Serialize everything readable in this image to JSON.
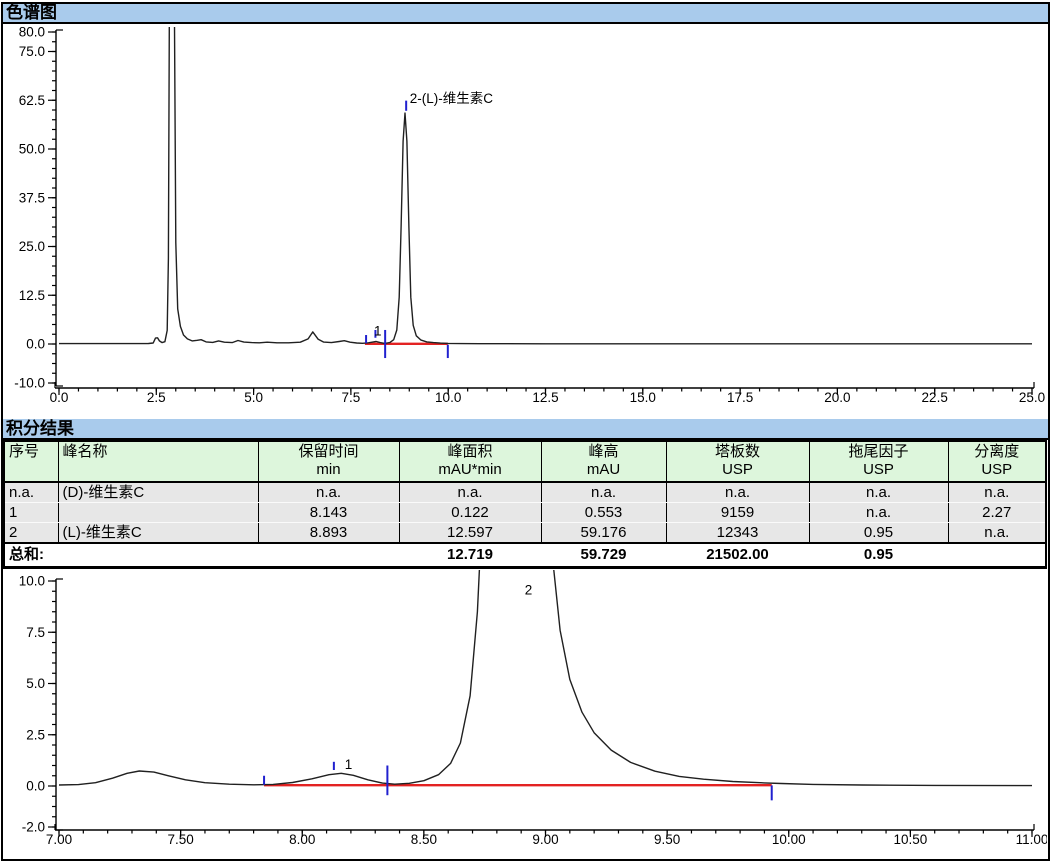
{
  "sections": {
    "chromatogram_title": "色谱图",
    "integration_title": "积分结果"
  },
  "colors": {
    "band_bg": "#a9cbec",
    "header_bg": "#ddf6dc",
    "row_bg": "#e7e7e7",
    "trace": "#202020",
    "baseline_red": "#e32222",
    "marker_blue": "#2020cf",
    "border": "#000000"
  },
  "table": {
    "columns": [
      {
        "label": "序号",
        "unit": "",
        "align": "left"
      },
      {
        "label": "峰名称",
        "unit": "",
        "align": "left"
      },
      {
        "label": "保留时间",
        "unit": "min",
        "align": "center"
      },
      {
        "label": "峰面积",
        "unit": "mAU*min",
        "align": "center"
      },
      {
        "label": "峰高",
        "unit": "mAU",
        "align": "center"
      },
      {
        "label": "塔板数",
        "unit": "USP",
        "align": "center"
      },
      {
        "label": "拖尾因子",
        "unit": "USP",
        "align": "center"
      },
      {
        "label": "分离度",
        "unit": "USP",
        "align": "center"
      }
    ],
    "rows": [
      [
        "n.a.",
        "(D)-维生素C",
        "n.a.",
        "n.a.",
        "n.a.",
        "n.a.",
        "n.a.",
        "n.a."
      ],
      [
        "1",
        "",
        "8.143",
        "0.122",
        "0.553",
        "9159",
        "n.a.",
        "2.27"
      ],
      [
        "2",
        "(L)-维生素C",
        "8.893",
        "12.597",
        "59.176",
        "12343",
        "0.95",
        "n.a."
      ]
    ],
    "total_label": "总和:",
    "total_values": [
      "",
      "12.719",
      "59.729",
      "21502.00",
      "0.95",
      ""
    ]
  },
  "chart_data": [
    {
      "type": "line",
      "name": "chromatogram-full",
      "x_range": [
        0,
        25
      ],
      "y_range": [
        -10,
        80
      ],
      "x_major": [
        [
          0,
          "0.0"
        ],
        [
          2.5,
          "2.5"
        ],
        [
          5,
          "5.0"
        ],
        [
          7.5,
          "7.5"
        ],
        [
          10,
          "10.0"
        ],
        [
          12.5,
          "12.5"
        ],
        [
          15,
          "15.0"
        ],
        [
          17.5,
          "17.5"
        ],
        [
          20,
          "20.0"
        ],
        [
          22.5,
          "22.5"
        ],
        [
          25,
          "25.0"
        ]
      ],
      "x_minor_step": 0.5,
      "y_major": [
        [
          -10,
          "-10.0"
        ],
        [
          0,
          "0.0"
        ],
        [
          12.5,
          "12.5"
        ],
        [
          25,
          "25.0"
        ],
        [
          37.5,
          "37.5"
        ],
        [
          50,
          "50.0"
        ],
        [
          62.5,
          "62.5"
        ],
        [
          75,
          "75.0"
        ],
        [
          80,
          "80.0"
        ]
      ],
      "y_minor_step": 2.5,
      "trace": [
        [
          0,
          0.1
        ],
        [
          0.6,
          0.1
        ],
        [
          1.2,
          0.1
        ],
        [
          1.8,
          0.1
        ],
        [
          2.3,
          0.12
        ],
        [
          2.42,
          0.25
        ],
        [
          2.48,
          1.5
        ],
        [
          2.53,
          1.6
        ],
        [
          2.58,
          0.8
        ],
        [
          2.65,
          0.35
        ],
        [
          2.72,
          0.6
        ],
        [
          2.78,
          3.5
        ],
        [
          2.81,
          22
        ],
        [
          2.84,
          95
        ],
        [
          2.87,
          200
        ],
        [
          2.93,
          200
        ],
        [
          2.96,
          95
        ],
        [
          3.0,
          26
        ],
        [
          3.05,
          9
        ],
        [
          3.12,
          4.5
        ],
        [
          3.2,
          2.3
        ],
        [
          3.3,
          1.3
        ],
        [
          3.42,
          0.8
        ],
        [
          3.55,
          0.95
        ],
        [
          3.65,
          1.1
        ],
        [
          3.78,
          0.55
        ],
        [
          3.95,
          0.4
        ],
        [
          4.1,
          0.8
        ],
        [
          4.25,
          0.45
        ],
        [
          4.45,
          0.35
        ],
        [
          4.6,
          0.9
        ],
        [
          4.75,
          0.5
        ],
        [
          4.95,
          0.35
        ],
        [
          5.15,
          0.3
        ],
        [
          5.35,
          0.45
        ],
        [
          5.6,
          0.3
        ],
        [
          5.9,
          0.3
        ],
        [
          6.2,
          0.45
        ],
        [
          6.4,
          1.3
        ],
        [
          6.52,
          3.1
        ],
        [
          6.66,
          1.2
        ],
        [
          6.8,
          0.5
        ],
        [
          7.0,
          0.35
        ],
        [
          7.2,
          0.65
        ],
        [
          7.33,
          0.85
        ],
        [
          7.48,
          0.45
        ],
        [
          7.65,
          0.25
        ],
        [
          7.8,
          0.18
        ],
        [
          7.95,
          0.3
        ],
        [
          8.08,
          0.55
        ],
        [
          8.15,
          0.65
        ],
        [
          8.25,
          0.35
        ],
        [
          8.37,
          0.15
        ],
        [
          8.5,
          0.35
        ],
        [
          8.6,
          1.1
        ],
        [
          8.68,
          3.6
        ],
        [
          8.74,
          12
        ],
        [
          8.79,
          30
        ],
        [
          8.84,
          52
        ],
        [
          8.89,
          59.2
        ],
        [
          8.94,
          52
        ],
        [
          8.99,
          30
        ],
        [
          9.04,
          12
        ],
        [
          9.1,
          4.8
        ],
        [
          9.18,
          2.1
        ],
        [
          9.3,
          1.0
        ],
        [
          9.45,
          0.55
        ],
        [
          9.62,
          0.35
        ],
        [
          9.8,
          0.22
        ],
        [
          9.99,
          0.15
        ],
        [
          10.3,
          0.1
        ],
        [
          10.8,
          0.08
        ],
        [
          11.5,
          0.07
        ],
        [
          12.5,
          0.06
        ],
        [
          14,
          0.06
        ],
        [
          16,
          0.05
        ],
        [
          18,
          0.05
        ],
        [
          20,
          0.05
        ],
        [
          22,
          0.05
        ],
        [
          25,
          0.05
        ]
      ],
      "baseline": {
        "x1": 7.86,
        "y1": 0.05,
        "x2": 9.99,
        "y2": 0.05
      },
      "markers": [
        [
          7.89,
          0.2,
          2.3
        ],
        [
          8.13,
          1.6,
          3.6
        ],
        [
          8.38,
          -3.6,
          3.6
        ],
        [
          8.92,
          59.8,
          62.4
        ],
        [
          9.99,
          -3.6,
          -0.2
        ]
      ],
      "labels": [
        {
          "text": "1",
          "t": 8.19,
          "v": 2.2,
          "anchor": "middle"
        },
        {
          "text": "2-(L)-维生素C",
          "t": 8.96,
          "v": 61.8,
          "anchor": "start"
        }
      ]
    },
    {
      "type": "line",
      "name": "chromatogram-zoom",
      "x_range": [
        7,
        11
      ],
      "y_range": [
        -2,
        10
      ],
      "x_major": [
        [
          7,
          "7.00"
        ],
        [
          7.5,
          "7.50"
        ],
        [
          8,
          "8.00"
        ],
        [
          8.5,
          "8.50"
        ],
        [
          9,
          "9.00"
        ],
        [
          9.5,
          "9.50"
        ],
        [
          10,
          "10.00"
        ],
        [
          10.5,
          "10.50"
        ],
        [
          11,
          "11.00"
        ]
      ],
      "x_minor_step": 0.1,
      "y_major": [
        [
          -2,
          "-2.0"
        ],
        [
          0,
          "0.0"
        ],
        [
          2.5,
          "2.5"
        ],
        [
          5,
          "5.0"
        ],
        [
          7.5,
          "7.5"
        ],
        [
          10,
          "10.0"
        ]
      ],
      "y_minor_step": 0.5,
      "trace": [
        [
          7.0,
          0.05
        ],
        [
          7.08,
          0.07
        ],
        [
          7.15,
          0.16
        ],
        [
          7.22,
          0.38
        ],
        [
          7.28,
          0.62
        ],
        [
          7.33,
          0.73
        ],
        [
          7.39,
          0.68
        ],
        [
          7.45,
          0.5
        ],
        [
          7.52,
          0.3
        ],
        [
          7.6,
          0.16
        ],
        [
          7.7,
          0.09
        ],
        [
          7.8,
          0.06
        ],
        [
          7.88,
          0.08
        ],
        [
          7.96,
          0.17
        ],
        [
          8.04,
          0.35
        ],
        [
          8.11,
          0.55
        ],
        [
          8.16,
          0.62
        ],
        [
          8.21,
          0.52
        ],
        [
          8.27,
          0.3
        ],
        [
          8.33,
          0.14
        ],
        [
          8.38,
          0.09
        ],
        [
          8.44,
          0.13
        ],
        [
          8.5,
          0.26
        ],
        [
          8.56,
          0.55
        ],
        [
          8.61,
          1.1
        ],
        [
          8.65,
          2.1
        ],
        [
          8.69,
          4.4
        ],
        [
          8.72,
          8.5
        ],
        [
          8.75,
          16
        ],
        [
          8.79,
          32
        ],
        [
          8.84,
          50
        ],
        [
          8.89,
          59.2
        ],
        [
          8.93,
          50
        ],
        [
          8.97,
          32
        ],
        [
          9.0,
          18
        ],
        [
          9.03,
          11
        ],
        [
          9.06,
          7.6
        ],
        [
          9.1,
          5.2
        ],
        [
          9.15,
          3.6
        ],
        [
          9.2,
          2.6
        ],
        [
          9.27,
          1.75
        ],
        [
          9.35,
          1.15
        ],
        [
          9.45,
          0.72
        ],
        [
          9.55,
          0.47
        ],
        [
          9.65,
          0.33
        ],
        [
          9.77,
          0.22
        ],
        [
          9.9,
          0.15
        ],
        [
          9.97,
          0.12
        ],
        [
          10.1,
          0.08
        ],
        [
          10.3,
          0.05
        ],
        [
          10.6,
          0.03
        ],
        [
          11.0,
          0.02
        ]
      ],
      "baseline": {
        "x1": 7.843,
        "y1": 0.04,
        "x2": 9.93,
        "y2": 0.04
      },
      "markers": [
        [
          7.843,
          0.06,
          0.5
        ],
        [
          8.13,
          0.78,
          1.18
        ],
        [
          8.35,
          -0.45,
          1.0
        ],
        [
          9.93,
          -0.7,
          0.03
        ]
      ],
      "labels": [
        {
          "text": "1",
          "t": 8.19,
          "v": 0.82,
          "anchor": "middle"
        },
        {
          "text": "2",
          "t": 8.93,
          "v": 9.35,
          "anchor": "middle"
        }
      ]
    }
  ]
}
